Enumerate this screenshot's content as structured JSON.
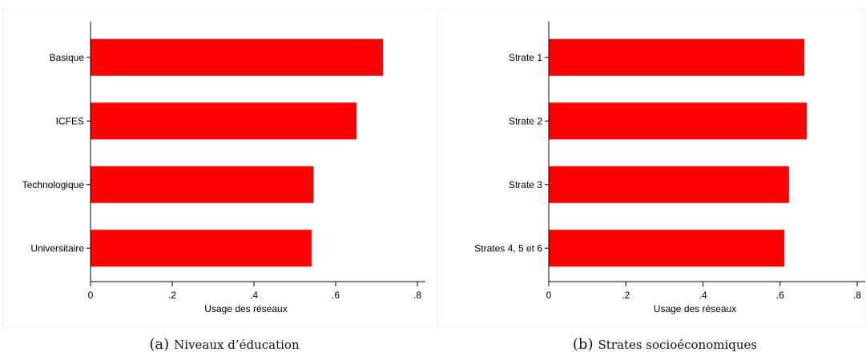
{
  "chart_data": [
    {
      "type": "bar",
      "orientation": "horizontal",
      "categories": [
        "Basique",
        "ICFES",
        "Technologique",
        "Universitaire"
      ],
      "values": [
        0.715,
        0.65,
        0.545,
        0.54
      ],
      "xlabel": "Usage des réseaux",
      "xlim": [
        0,
        0.8
      ],
      "xticks": [
        0,
        0.2,
        0.4,
        0.6,
        0.8
      ],
      "xtick_labels": [
        "0",
        ".2",
        ".4",
        ".6",
        ".8"
      ],
      "grid": false,
      "bar_color": "#ff0000",
      "caption_label": "(a)",
      "caption_text": "Niveaux d’éducation"
    },
    {
      "type": "bar",
      "orientation": "horizontal",
      "categories": [
        "Strate 1",
        "Strate 2",
        "Strate 3",
        "Strates 4, 5 et 6"
      ],
      "values": [
        0.662,
        0.668,
        0.622,
        0.61
      ],
      "xlabel": "Usage des réseaux",
      "xlim": [
        0,
        0.8
      ],
      "xticks": [
        0,
        0.2,
        0.4,
        0.6,
        0.8
      ],
      "xtick_labels": [
        "0",
        ".2",
        ".4",
        ".6",
        ".8"
      ],
      "grid": false,
      "bar_color": "#ff0000",
      "caption_label": "(b)",
      "caption_text": "Strates socioéconomiques"
    }
  ]
}
